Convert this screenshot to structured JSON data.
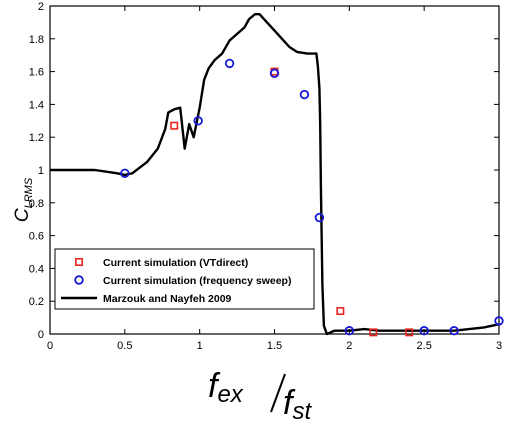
{
  "chart_data": {
    "type": "line",
    "xlabel_main": "f",
    "xlabel_num_sub": "ex",
    "xlabel_den": "f",
    "xlabel_den_sub": "st",
    "ylabel_main": "C",
    "ylabel_sub": "LRMS",
    "xlim": [
      0,
      3
    ],
    "ylim": [
      0,
      2
    ],
    "xticks": [
      0,
      0.5,
      1,
      1.5,
      2,
      2.5,
      3
    ],
    "xtick_labels": [
      "0",
      "0.5",
      "1",
      "1.5",
      "2",
      "2.5",
      "3"
    ],
    "yticks": [
      0,
      0.2,
      0.4,
      0.6,
      0.8,
      1,
      1.2,
      1.4,
      1.6,
      1.8,
      2
    ],
    "ytick_labels": [
      "0",
      "0.2",
      "0.4",
      "0.6",
      "0.8",
      "1",
      "1.2",
      "1.4",
      "1.6",
      "1.8",
      "2"
    ],
    "grid": false,
    "legend_position": "bottom-left",
    "series": [
      {
        "name": "Current simulation (VTdirect)",
        "marker": "square",
        "color": "#e8251f",
        "x": [
          0.83,
          1.5,
          1.94,
          2.16,
          2.4
        ],
        "y": [
          1.27,
          1.6,
          0.14,
          0.01,
          0.01
        ]
      },
      {
        "name": "Current simulation (frequency sweep)",
        "marker": "circle",
        "color": "#1a1ad6",
        "x": [
          0.5,
          0.99,
          1.2,
          1.5,
          1.7,
          1.8,
          2.0,
          2.5,
          2.7,
          3.0
        ],
        "y": [
          0.98,
          1.3,
          1.65,
          1.59,
          1.46,
          0.71,
          0.02,
          0.02,
          0.02,
          0.08
        ]
      },
      {
        "name": "Marzouk and Nayfeh 2009",
        "marker": "line",
        "color": "#000000",
        "x": [
          0,
          0.3,
          0.45,
          0.5,
          0.55,
          0.65,
          0.72,
          0.77,
          0.79,
          0.83,
          0.87,
          0.9,
          0.93,
          0.96,
          1.0,
          1.03,
          1.06,
          1.1,
          1.15,
          1.2,
          1.25,
          1.3,
          1.33,
          1.37,
          1.4,
          1.45,
          1.5,
          1.55,
          1.6,
          1.65,
          1.72,
          1.78,
          1.79,
          1.8,
          1.805,
          1.81,
          1.815,
          1.82,
          1.83,
          1.85,
          1.9,
          2.0,
          2.1,
          2.2,
          2.5,
          2.7,
          2.8,
          2.9,
          3.0
        ],
        "y": [
          1.0,
          1.0,
          0.98,
          0.97,
          0.98,
          1.05,
          1.13,
          1.25,
          1.35,
          1.37,
          1.38,
          1.13,
          1.28,
          1.2,
          1.38,
          1.55,
          1.62,
          1.67,
          1.71,
          1.79,
          1.83,
          1.87,
          1.92,
          1.95,
          1.95,
          1.9,
          1.85,
          1.8,
          1.75,
          1.72,
          1.71,
          1.71,
          1.63,
          1.5,
          1.3,
          0.9,
          0.6,
          0.3,
          0.05,
          0.0,
          0.02,
          0.02,
          0.03,
          0.02,
          0.02,
          0.02,
          0.03,
          0.04,
          0.06
        ]
      }
    ]
  }
}
